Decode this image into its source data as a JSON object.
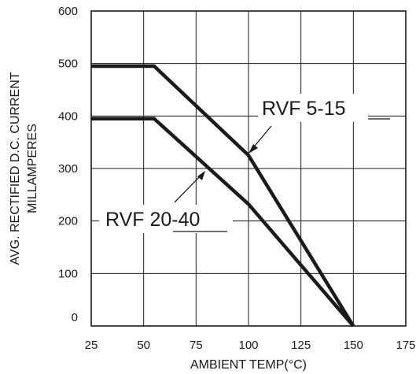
{
  "chart_data": {
    "type": "line",
    "xlabel": "AMBIENT  TEMP(°C)",
    "ylabel_lines": [
      "AVG. RECTIFIED D.C.  CURRENT",
      "MILLAMPERES"
    ],
    "xlim": [
      25,
      175
    ],
    "ylim": [
      0,
      600
    ],
    "x_ticks": [
      25,
      50,
      75,
      100,
      125,
      150,
      175
    ],
    "y_ticks": [
      0,
      100,
      200,
      300,
      400,
      500,
      600
    ],
    "grid": true,
    "series": [
      {
        "name": "RVF 5-15",
        "points": [
          [
            25,
            495
          ],
          [
            55,
            495
          ],
          [
            100,
            325
          ],
          [
            150,
            0
          ]
        ]
      },
      {
        "name": "RVF 20-40",
        "points": [
          [
            25,
            395
          ],
          [
            55,
            395
          ],
          [
            100,
            232
          ],
          [
            150,
            0
          ]
        ]
      }
    ]
  }
}
